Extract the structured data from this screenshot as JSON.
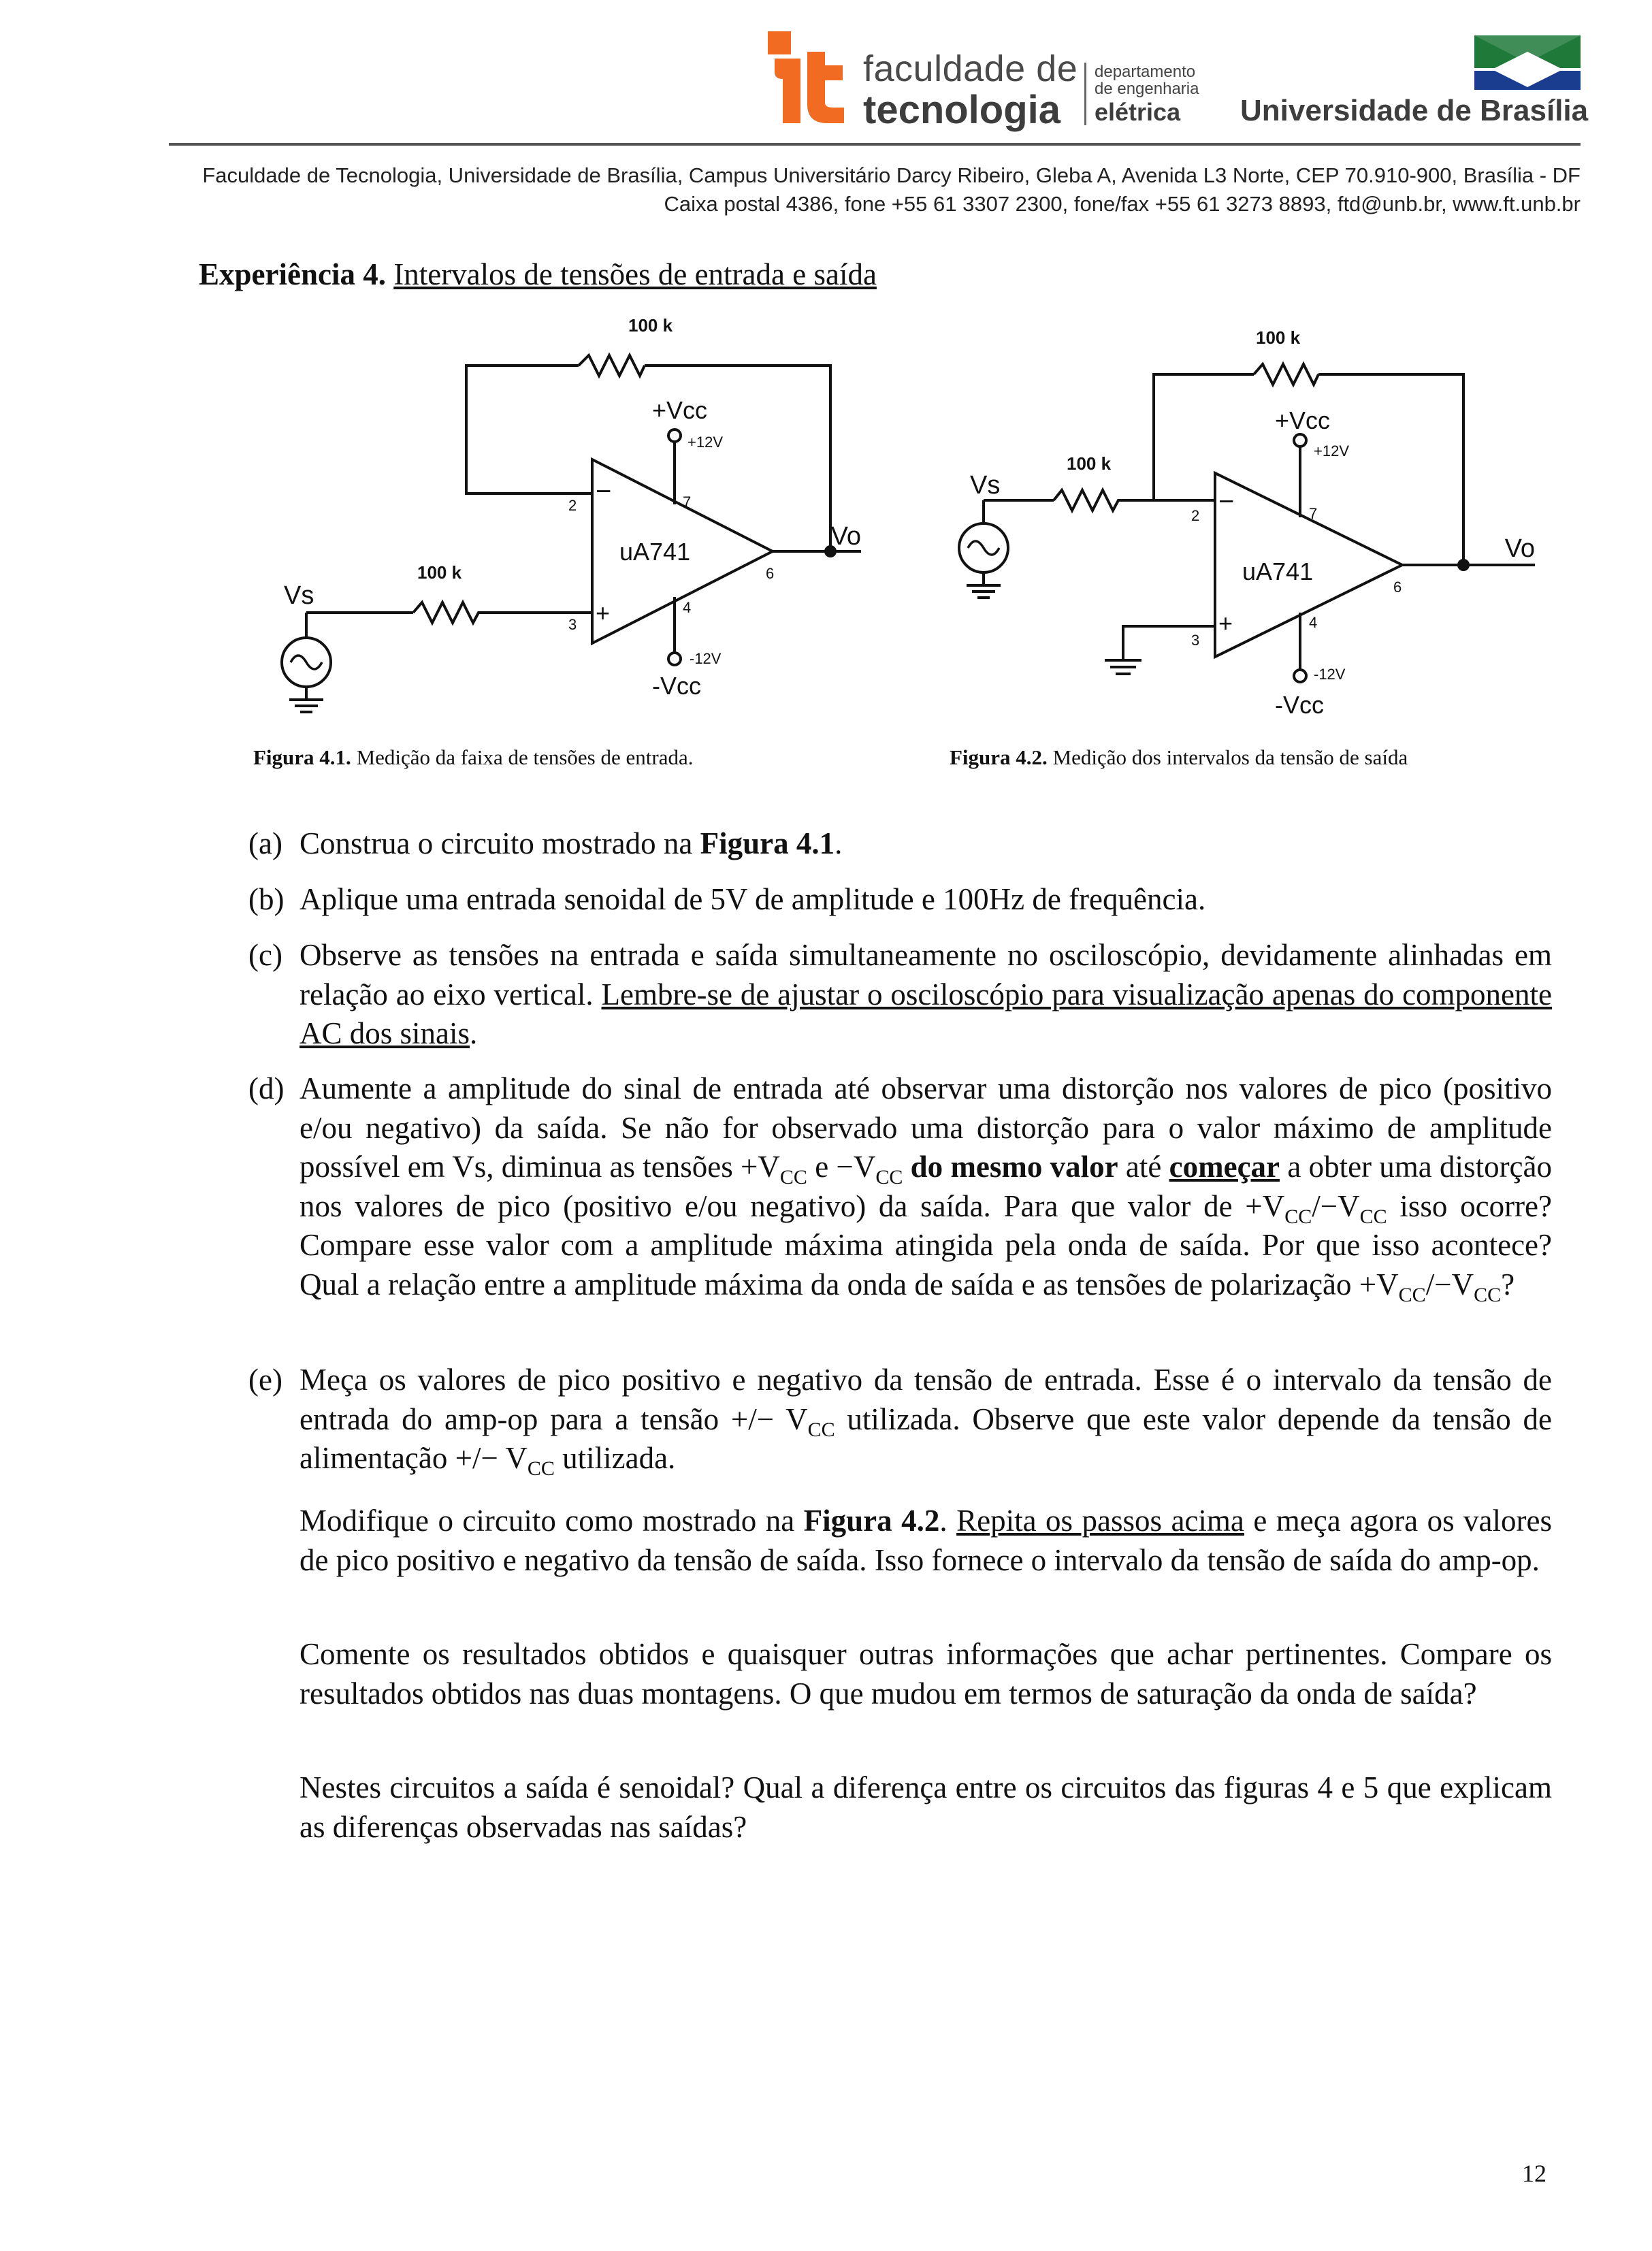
{
  "header": {
    "faculty_line1": "faculdade de",
    "faculty_line2": "tecnologia",
    "dept_line1": "departamento",
    "dept_line2": "de engenharia",
    "dept_line3": "elétrica",
    "university": "Universidade de Brasília",
    "address_line1": "Faculdade de Tecnologia, Universidade de Brasília, Campus Universitário Darcy Ribeiro, Gleba A, Avenida L3 Norte, CEP 70.910-900, Brasília - DF",
    "address_line2": "Caixa postal 4386, fone +55 61 3307 2300, fone/fax +55 61 3273 8893, ftd@unb.br, www.ft.unb.br",
    "colors": {
      "logo_orange": "#f26b22",
      "unb_green": "#1f7a3a",
      "unb_blue": "#1b3d8f"
    }
  },
  "title": {
    "label": "Experiência 4.",
    "text": "Intervalos de tensões de entrada e saída"
  },
  "figure1": {
    "resistor_feedback": "100 k",
    "resistor_input": "100 k",
    "source": "Vs",
    "vcc_pos": "+Vcc",
    "vcc_pos_value": "+12V",
    "vcc_neg": "-Vcc",
    "vcc_neg_value": "-12V",
    "opamp": "uA741",
    "output": "Vo",
    "pin2": "2",
    "pin3": "3",
    "pin4": "4",
    "pin6": "6",
    "pin7": "7",
    "minus": "−",
    "plus": "+",
    "caption_label": "Figura 4.1.",
    "caption_text": " Medição da faixa de tensões de entrada."
  },
  "figure2": {
    "resistor_feedback": "100 k",
    "resistor_input": "100 k",
    "source": "Vs",
    "vcc_pos": "+Vcc",
    "vcc_pos_value": "+12V",
    "vcc_neg": "-Vcc",
    "vcc_neg_value": "-12V",
    "opamp": "uA741",
    "output": "Vo",
    "pin2": "2",
    "pin3": "3",
    "pin4": "4",
    "pin6": "6",
    "pin7": "7",
    "minus": "−",
    "plus": "+",
    "caption_label": "Figura 4.2.",
    "caption_text": " Medição dos intervalos da tensão de saída"
  },
  "items": {
    "a": {
      "label": "(a)",
      "t1": "Construa o circuito mostrado na ",
      "b1": "Figura 4.1",
      "t2": "."
    },
    "b": {
      "label": "(b)",
      "t1": "Aplique uma entrada senoidal de 5V de amplitude e 100Hz de frequência."
    },
    "c": {
      "label": "(c)",
      "t1": "Observe as tensões na entrada e saída simultaneamente no osciloscópio, devidamente alinhadas em relação ao eixo vertical. ",
      "u1": "Lembre-se de ajustar o osciloscópio para visualização apenas do componente AC dos sinais",
      "t2": "."
    },
    "d": {
      "label": "(d)",
      "t1": "Aumente a amplitude do sinal de entrada até observar uma distorção nos valores de pico (positivo e/ou negativo) da saída. Se não for observado uma distorção para o valor máximo de amplitude possível em Vs, diminua as tensões +V",
      "sub": "CC",
      "t2": " e −V",
      "t3": " ",
      "b1": "do mesmo valor",
      "t4": " até ",
      "bu1": "começar",
      "t5": " a obter uma distorção nos valores de pico (positivo e/ou negativo) da saída. Para que valor de +V",
      "t6": "/−V",
      "t7": " isso ocorre? Compare esse valor com a amplitude máxima atingida pela onda de saída. Por que isso acontece? Qual a relação entre a amplitude máxima da onda de saída e as tensões de polarização +V",
      "t8": "/−V",
      "t9": "?"
    },
    "e": {
      "label": "(e)",
      "t1": "Meça os valores de pico positivo e negativo da tensão de entrada. Esse é o intervalo da tensão de entrada do amp-op para a tensão +/− V",
      "sub": "CC",
      "t2": " utilizada. Observe que este valor depende da tensão de alimentação +/− V",
      "t3": " utilizada."
    }
  },
  "paragraphs": {
    "p1": {
      "t1": "Modifique o circuito como mostrado na ",
      "b1": "Figura 4.2",
      "t2": ". ",
      "u1": "Repita os passos acima",
      "t3": " e meça agora os valores de pico positivo e negativo da tensão de saída. Isso fornece o intervalo da tensão de saída do amp-op."
    },
    "p2": "Comente os resultados obtidos e quaisquer outras informações que achar pertinentes. Compare os resultados obtidos nas duas montagens. O que mudou em termos de saturação da onda de saída?",
    "p3": "Nestes circuitos a saída é senoidal? Qual a diferença entre os circuitos das figuras 4 e 5 que explicam as diferenças observadas nas saídas?"
  },
  "page_number": "12"
}
